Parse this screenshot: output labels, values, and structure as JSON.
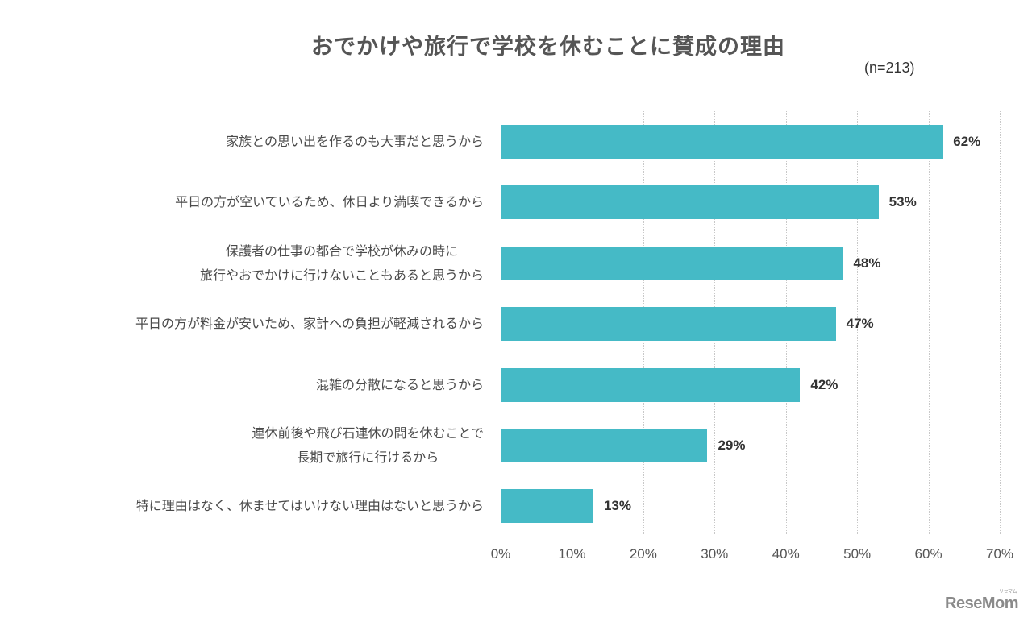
{
  "header": {
    "title": "おでかけや旅行で学校を休むことに賛成の理由",
    "sample_size": "(n=213)"
  },
  "colors": {
    "bar": "#45BAC6",
    "text": "#4A4A4A",
    "value_text": "#333333"
  },
  "chart_data": {
    "type": "bar",
    "orientation": "horizontal",
    "title": "おでかけや旅行で学校を休むことに賛成の理由",
    "subtitle": "(n=213)",
    "categories": [
      "家族との思い出を作るのも大事だと思うから",
      "平日の方が空いているため、休日より満喫できるから",
      "保護者の仕事の都合で学校が休みの時に旅行やおでかけに行けないこともあると思うから",
      "平日の方が料金が安いため、家計への負担が軽減されるから",
      "混雑の分散になると思うから",
      "連休前後や飛び石連休の間を休むことで長期で旅行に行けるから",
      "特に理由はなく、休ませてはいけない理由はないと思うから"
    ],
    "category_lines": [
      [
        "家族との思い出を作るのも大事だと思うから"
      ],
      [
        "平日の方が空いているため、休日より満喫できるから"
      ],
      [
        "保護者の仕事の都合で学校が休みの時に",
        "旅行やおでかけに行けないこともあると思うから"
      ],
      [
        "平日の方が料金が安いため、家計への負担が軽減されるから"
      ],
      [
        "混雑の分散になると思うから"
      ],
      [
        "連休前後や飛び石連休の間を休むことで",
        "長期で旅行に行けるから"
      ],
      [
        "特に理由はなく、休ませてはいけない理由はないと思うから"
      ]
    ],
    "values": [
      62,
      53,
      48,
      47,
      42,
      29,
      13
    ],
    "value_labels": [
      "62%",
      "53%",
      "48%",
      "47%",
      "42%",
      "29%",
      "13%"
    ],
    "xlabel": "",
    "ylabel": "",
    "xlim": [
      0,
      70
    ],
    "x_ticks": [
      "0%",
      "10%",
      "20%",
      "30%",
      "40%",
      "50%",
      "60%",
      "70%"
    ],
    "grid": "vertical dotted",
    "legend": "none"
  },
  "watermark": {
    "brand": "ReseMom",
    "kana": "リセマム"
  }
}
